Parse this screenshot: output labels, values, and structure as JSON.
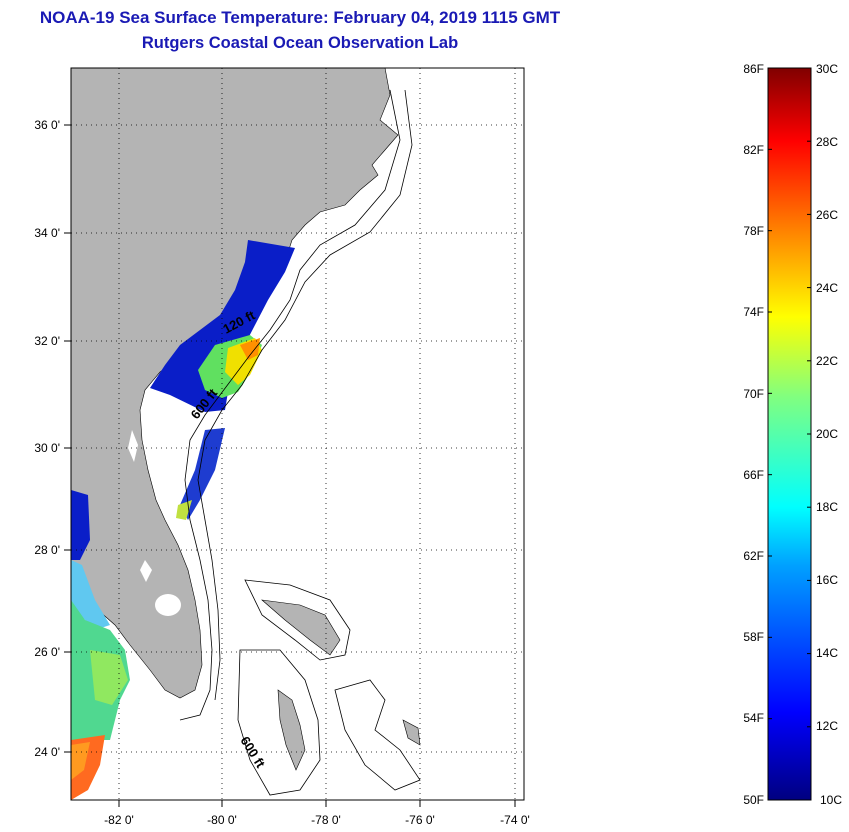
{
  "title": "NOAA-19 Sea Surface Temperature:  February 04, 2019 1115 GMT",
  "subtitle": "Rutgers Coastal Ocean Observation Lab",
  "map": {
    "lat_ticks": [
      "36 0'",
      "34 0'",
      "32 0'",
      "30 0'",
      "28 0'",
      "26 0'",
      "24 0'"
    ],
    "lon_ticks": [
      "-82 0'",
      "-80 0'",
      "-78 0'",
      "-76 0'",
      "-74 0'"
    ],
    "contour_labels": [
      "120 ft",
      "600 ft",
      "600 ft"
    ],
    "land_color": "#b4b4b4"
  },
  "colorbar": {
    "f_labels": [
      "86F",
      "82F",
      "78F",
      "74F",
      "70F",
      "66F",
      "62F",
      "58F",
      "54F",
      "50F"
    ],
    "c_labels": [
      "30C",
      "28C",
      "26C",
      "24C",
      "22C",
      "20C",
      "18C",
      "16C",
      "14C",
      "12C",
      "10C"
    ],
    "range_c": [
      10,
      30
    ],
    "range_f": [
      50,
      86
    ]
  }
}
